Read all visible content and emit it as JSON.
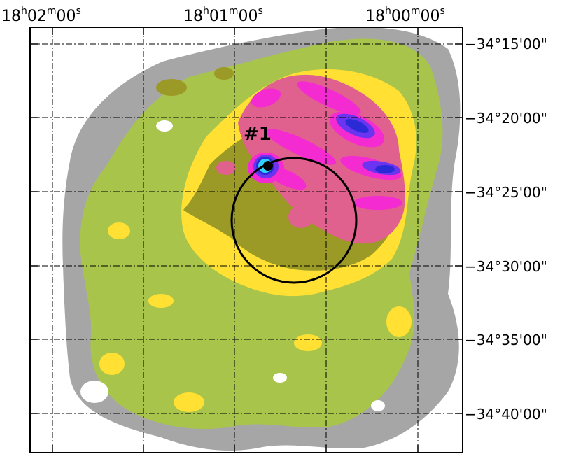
{
  "image": {
    "colors": {
      "background": "#ffffff",
      "frame": "#000000",
      "level_1": "#a6a6a6",
      "level_2": "#a9c44b",
      "level_3": "#ffe033",
      "level_4": "#9c9a26",
      "level_5": "#e0608e",
      "level_6": "#f42bd1",
      "level_7": "#6a34f0",
      "level_8": "#2a2ad6",
      "level_9": "#30d0ff",
      "marker": "#000000"
    },
    "ra_axis": {
      "ticks": [
        {
          "h": "18",
          "m": "02",
          "s": "00"
        },
        {
          "h": "18",
          "m": "01",
          "s": "00"
        },
        {
          "h": "18",
          "m": "00",
          "s": "00"
        }
      ]
    },
    "dec_axis": {
      "ticks": [
        "−34°15'00\"",
        "−34°20'00\"",
        "−34°25'00\"",
        "−34°30'00\"",
        "−34°35'00\"",
        "−34°40'00\""
      ]
    },
    "source_label": "#1"
  }
}
